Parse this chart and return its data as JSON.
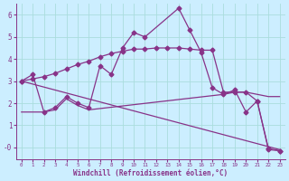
{
  "bg_color": "#cceeff",
  "line_color": "#883388",
  "grid_color": "#aadddd",
  "xlabel": "Windchill (Refroidissement éolien,°C)",
  "xlim": [
    -0.5,
    23.5
  ],
  "ylim": [
    -0.55,
    6.5
  ],
  "xticks": [
    0,
    1,
    2,
    3,
    4,
    5,
    6,
    7,
    8,
    9,
    10,
    11,
    12,
    13,
    14,
    15,
    16,
    17,
    18,
    19,
    20,
    21,
    22,
    23
  ],
  "yticks": [
    0,
    1,
    2,
    3,
    4,
    5,
    6
  ],
  "ytick_labels": [
    "-0",
    "1",
    "2",
    "3",
    "4",
    "5",
    "6"
  ],
  "curve1_x": [
    0,
    1,
    2,
    3,
    4,
    5,
    6,
    7,
    8,
    9,
    10,
    11,
    14,
    15,
    16,
    17,
    18,
    19,
    20,
    21,
    22,
    23
  ],
  "curve1_y": [
    3.0,
    3.3,
    1.6,
    1.8,
    2.3,
    2.0,
    1.8,
    3.7,
    3.3,
    4.5,
    5.2,
    5.0,
    6.3,
    5.3,
    4.3,
    2.7,
    2.4,
    2.6,
    1.6,
    2.1,
    -0.1,
    -0.15
  ],
  "curve2_x": [
    0,
    1,
    2,
    3,
    4,
    5,
    6,
    7,
    8,
    9,
    10,
    11,
    12,
    13,
    14,
    15,
    16,
    17,
    18,
    19,
    20,
    21,
    22,
    23
  ],
  "curve2_y": [
    3.0,
    3.1,
    3.2,
    3.35,
    3.55,
    3.75,
    3.9,
    4.1,
    4.25,
    4.35,
    4.45,
    4.45,
    4.5,
    4.5,
    4.5,
    4.45,
    4.4,
    4.4,
    2.5,
    2.5,
    2.5,
    2.1,
    -0.05,
    -0.15
  ],
  "line3_x": [
    0,
    23
  ],
  "line3_y": [
    3.0,
    -0.1
  ],
  "curve4_x": [
    0,
    2,
    3,
    4,
    5,
    6,
    18,
    19,
    20,
    21,
    22,
    23
  ],
  "curve4_y": [
    1.6,
    1.6,
    1.7,
    2.2,
    1.9,
    1.7,
    2.4,
    2.5,
    2.5,
    2.4,
    2.3,
    2.3
  ],
  "marker": "D",
  "markersize": 2.5,
  "linewidth": 0.9
}
